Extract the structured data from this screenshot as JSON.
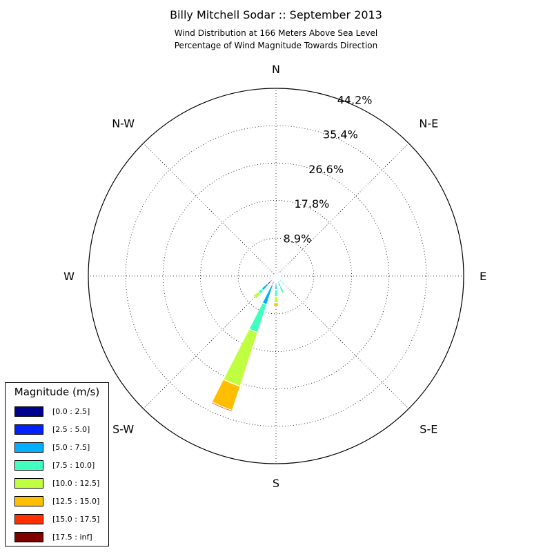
{
  "title": "Billy Mitchell Sodar :: September 2013",
  "subtitle_line1": "Wind Distribution at 166 Meters Above Sea Level",
  "subtitle_line2": "Percentage of Wind Magnitude Towards Direction",
  "legend": {
    "title": "Magnitude (m/s)",
    "items": [
      {
        "label": "[0.0 : 2.5]",
        "color": "#00008f"
      },
      {
        "label": "[2.5 : 5.0]",
        "color": "#0020ff"
      },
      {
        "label": "[5.0 : 7.5]",
        "color": "#00afff"
      },
      {
        "label": "[7.5 : 10.0]",
        "color": "#40ffbf"
      },
      {
        "label": "[10.0 : 12.5]",
        "color": "#bfff40"
      },
      {
        "label": "[12.5 : 15.0]",
        "color": "#ffbf00"
      },
      {
        "label": "[15.0 : 17.5]",
        "color": "#ff3000"
      },
      {
        "label": "[17.5 : inf]",
        "color": "#800000"
      }
    ]
  },
  "chart_data": {
    "type": "wind-rose",
    "direction_labels": [
      "N",
      "N-E",
      "E",
      "S-E",
      "S",
      "S-W",
      "W",
      "N-W"
    ],
    "radial_tick_labels": [
      "8.9%",
      "17.8%",
      "26.6%",
      "35.4%",
      "44.2%"
    ],
    "radial_ticks": [
      8.9,
      17.8,
      26.6,
      35.4,
      44.2
    ],
    "rmax": 44.2,
    "grid": true,
    "bins": [
      "[0.0 : 2.5]",
      "[2.5 : 5.0]",
      "[5.0 : 7.5]",
      "[7.5 : 10.0]",
      "[10.0 : 12.5]",
      "[12.5 : 15.0]",
      "[15.0 : 17.5]",
      "[17.5 : inf]"
    ],
    "directions_deg": [
      0,
      22.5,
      45,
      67.5,
      90,
      112.5,
      135,
      157.5,
      180,
      202.5,
      225,
      247.5,
      270,
      292.5,
      315,
      337.5
    ],
    "cumulative_percent": [
      [
        0.3,
        0.6,
        0.8,
        0.8,
        0.8,
        0.8,
        0.8,
        0.8
      ],
      [
        0.5,
        1.0,
        1.6,
        1.8,
        1.9,
        1.9,
        1.9,
        1.9
      ],
      [
        0.3,
        0.6,
        0.8,
        0.8,
        0.8,
        0.8,
        0.8,
        0.8
      ],
      [
        0.2,
        0.4,
        0.5,
        0.5,
        0.5,
        0.5,
        0.5,
        0.5
      ],
      [
        0.3,
        0.6,
        0.7,
        0.7,
        0.7,
        0.7,
        0.7,
        0.7
      ],
      [
        0.4,
        0.9,
        1.2,
        1.3,
        1.3,
        1.3,
        1.3,
        1.3
      ],
      [
        0.5,
        1.2,
        2.0,
        2.4,
        2.5,
        2.5,
        2.5,
        2.5
      ],
      [
        0.5,
        1.2,
        2.6,
        4.2,
        4.5,
        4.5,
        4.5,
        4.5
      ],
      [
        0.6,
        1.5,
        3.2,
        4.8,
        6.3,
        7.1,
        7.1,
        7.1
      ],
      [
        0.9,
        2.2,
        7.1,
        14.0,
        27.3,
        33.3,
        33.6,
        33.6
      ],
      [
        0.9,
        2.7,
        4.5,
        5.6,
        7.1,
        7.1,
        7.1,
        7.1
      ],
      [
        0.6,
        1.5,
        1.8,
        1.8,
        1.8,
        1.8,
        1.8,
        1.8
      ],
      [
        0.3,
        0.6,
        1.0,
        1.0,
        1.0,
        1.0,
        1.0,
        1.0
      ],
      [
        0.1,
        0.2,
        0.2,
        0.2,
        0.2,
        0.2,
        0.2,
        0.2
      ],
      [
        0.1,
        0.2,
        0.2,
        0.2,
        0.2,
        0.2,
        0.2,
        0.2
      ],
      [
        0.1,
        0.2,
        0.2,
        0.2,
        0.2,
        0.2,
        0.2,
        0.2
      ]
    ]
  }
}
